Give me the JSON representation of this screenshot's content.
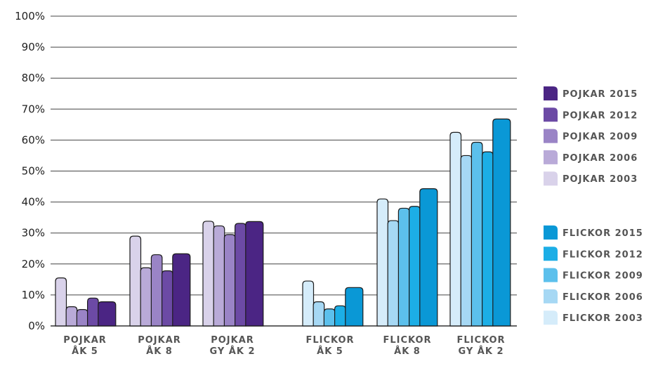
{
  "chart_data": {
    "type": "bar",
    "ylim": [
      0,
      100
    ],
    "yticks": [
      "0%",
      "10%",
      "20%",
      "30%",
      "40%",
      "50%",
      "60%",
      "70%",
      "80%",
      "90%",
      "100%"
    ],
    "categories": [
      {
        "line1": "POJKAR",
        "line2": "ÅK 5"
      },
      {
        "line1": "POJKAR",
        "line2": "ÅK 8"
      },
      {
        "line1": "POJKAR",
        "line2": "GY ÅK 2"
      },
      {
        "line1": "FLICKOR",
        "line2": "ÅK 5"
      },
      {
        "line1": "FLICKOR",
        "line2": "ÅK 8"
      },
      {
        "line1": "FLICKOR",
        "line2": "GY ÅK 2"
      }
    ],
    "groups": [
      {
        "series": [
          {
            "name": "POJKAR 2003",
            "color": "#d9d2ea"
          },
          {
            "name": "POJKAR 2006",
            "color": "#b9aad8"
          },
          {
            "name": "POJKAR 2009",
            "color": "#9a84c6"
          },
          {
            "name": "POJKAR 2012",
            "color": "#6c4aa5"
          },
          {
            "name": "POJKAR 2015",
            "color": "#4b2584"
          }
        ],
        "values": [
          [
            15.5,
            6.2,
            5.3,
            9.0,
            7.8
          ],
          [
            29.0,
            18.8,
            23.0,
            17.8,
            23.3
          ],
          [
            33.8,
            32.3,
            29.5,
            33.1,
            33.7
          ]
        ]
      },
      {
        "series": [
          {
            "name": "FLICKOR 2003",
            "color": "#d5ecfa"
          },
          {
            "name": "FLICKOR 2006",
            "color": "#a6d8f4"
          },
          {
            "name": "FLICKOR 2009",
            "color": "#5cc0ec"
          },
          {
            "name": "FLICKOR 2012",
            "color": "#1caee6"
          },
          {
            "name": "FLICKOR 2015",
            "color": "#0a98d6"
          }
        ],
        "values": [
          [
            14.5,
            7.8,
            5.5,
            6.5,
            12.4
          ],
          [
            41.0,
            34.0,
            38.0,
            38.6,
            44.3
          ],
          [
            62.5,
            55.0,
            59.3,
            56.2,
            66.8
          ]
        ]
      }
    ],
    "legend_order": [
      [
        "POJKAR 2015",
        "POJKAR 2012",
        "POJKAR 2009",
        "POJKAR 2006",
        "POJKAR 2003"
      ],
      [
        "FLICKOR 2015",
        "FLICKOR 2012",
        "FLICKOR 2009",
        "FLICKOR 2006",
        "FLICKOR 2003"
      ]
    ]
  }
}
